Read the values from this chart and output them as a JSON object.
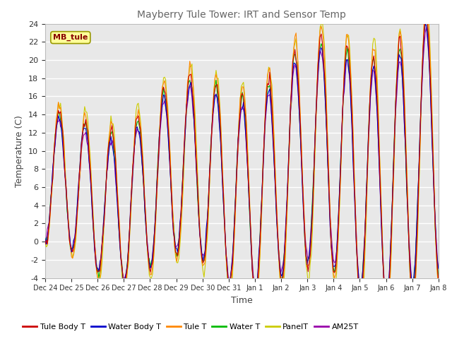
{
  "title": "Mayberry Tule Tower: IRT and Sensor Temp",
  "xlabel": "Time",
  "ylabel": "Temperature (C)",
  "ylim": [
    -4,
    24
  ],
  "yticks": [
    -4,
    -2,
    0,
    2,
    4,
    6,
    8,
    10,
    12,
    14,
    16,
    18,
    20,
    22,
    24
  ],
  "x_labels": [
    "Dec 24",
    "Dec 25",
    "Dec 26",
    "Dec 27",
    "Dec 28",
    "Dec 29",
    "Dec 30",
    "Dec 31",
    "Jan 1",
    "Jan 2",
    "Jan 3",
    "Jan 4",
    "Jan 5",
    "Jan 6",
    "Jan 7",
    "Jan 8"
  ],
  "series_colors": {
    "Tule Body T": "#cc0000",
    "Water Body T": "#0000cc",
    "Tule T": "#ff8800",
    "Water T": "#00bb00",
    "PanelT": "#cccc00",
    "AM25T": "#9900aa"
  },
  "legend_label": "MB_tule",
  "legend_box_color": "#ffff99",
  "legend_box_edge": "#999900",
  "background_color": "#e8e8e8",
  "grid_color": "#ffffff",
  "num_points": 360
}
